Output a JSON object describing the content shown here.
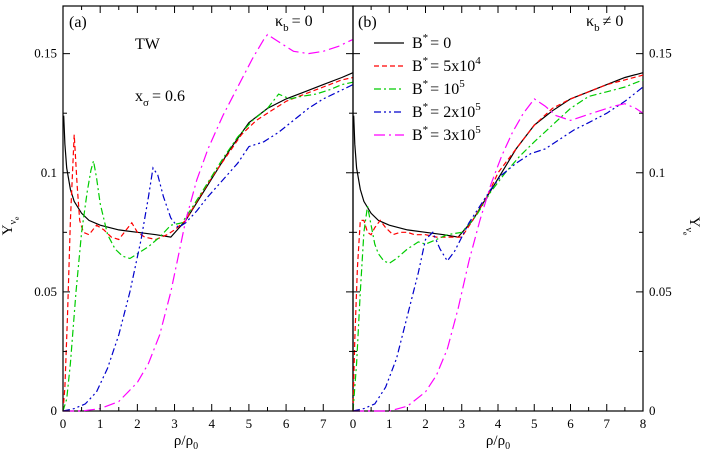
{
  "chart_data": [
    {
      "type": "line",
      "panel_label": "(a)",
      "annotations": {
        "model": "TW",
        "x_sigma_base": "x",
        "x_sigma_sub": "σ",
        "x_sigma_value": "= 0.6"
      },
      "kappa": {
        "base": "κ",
        "sub": "b",
        "relation": "= 0"
      },
      "xlabel": {
        "base": "ρ/ρ",
        "sub": "0"
      },
      "ylabel": {
        "base": "Y",
        "sub": "ν",
        "subsub": "e"
      },
      "xlim": [
        0,
        7.8
      ],
      "ylim": [
        0,
        0.17
      ],
      "xticks": [
        0,
        1,
        2,
        3,
        4,
        5,
        6,
        7
      ],
      "xtick_labels": [
        "0",
        "1",
        "2",
        "3",
        "4",
        "5",
        "6",
        "7"
      ],
      "yticks": [
        0,
        0.05,
        0.1,
        0.15
      ],
      "ytick_labels": [
        "0",
        "0.05",
        "0.1",
        "0.15"
      ],
      "ytick_side": "left",
      "series": [
        {
          "name": "B* = 0",
          "color": "#000000",
          "dash": "",
          "x": [
            0.02,
            0.05,
            0.1,
            0.2,
            0.3,
            0.5,
            0.7,
            1.0,
            1.5,
            2.0,
            2.5,
            2.9,
            3.3,
            3.7,
            4.1,
            4.5,
            5.0,
            5.5,
            6.0,
            6.5,
            7.0,
            7.5,
            7.8
          ],
          "y": [
            0.124,
            0.112,
            0.102,
            0.093,
            0.088,
            0.083,
            0.08,
            0.078,
            0.076,
            0.075,
            0.074,
            0.073,
            0.08,
            0.09,
            0.1,
            0.11,
            0.121,
            0.127,
            0.131,
            0.134,
            0.137,
            0.14,
            0.142
          ]
        },
        {
          "name": "B* = 5x10^4",
          "color": "#ff0000",
          "dash": "5,3",
          "x": [
            0.0,
            0.05,
            0.12,
            0.2,
            0.3,
            0.38,
            0.45,
            0.55,
            0.7,
            0.9,
            1.1,
            1.3,
            1.5,
            1.7,
            1.85,
            2.0,
            2.2,
            2.5,
            2.8,
            3.0,
            3.3,
            3.6,
            4.0,
            4.4,
            4.8,
            5.2,
            5.6,
            6.0,
            6.5,
            7.0,
            7.5,
            7.8
          ],
          "y": [
            0.0,
            0.01,
            0.04,
            0.08,
            0.116,
            0.095,
            0.08,
            0.075,
            0.074,
            0.078,
            0.076,
            0.073,
            0.072,
            0.076,
            0.079,
            0.075,
            0.073,
            0.072,
            0.074,
            0.076,
            0.08,
            0.088,
            0.098,
            0.107,
            0.116,
            0.122,
            0.126,
            0.13,
            0.133,
            0.136,
            0.139,
            0.14
          ]
        },
        {
          "name": "B* = 10^5",
          "color": "#00cc00",
          "dash": "7,3,2,3",
          "x": [
            0.0,
            0.1,
            0.2,
            0.35,
            0.5,
            0.65,
            0.75,
            0.82,
            0.9,
            1.0,
            1.2,
            1.4,
            1.6,
            1.8,
            2.0,
            2.3,
            2.6,
            2.9,
            3.2,
            3.5,
            3.9,
            4.3,
            4.7,
            5.1,
            5.5,
            5.8,
            6.1,
            6.4,
            6.8,
            7.2,
            7.5,
            7.8
          ],
          "y": [
            0.0,
            0.005,
            0.02,
            0.05,
            0.075,
            0.092,
            0.101,
            0.105,
            0.098,
            0.087,
            0.074,
            0.068,
            0.065,
            0.064,
            0.066,
            0.069,
            0.073,
            0.078,
            0.079,
            0.086,
            0.096,
            0.106,
            0.115,
            0.122,
            0.127,
            0.133,
            0.131,
            0.132,
            0.133,
            0.135,
            0.137,
            0.138
          ]
        },
        {
          "name": "B* = 2x10^5",
          "color": "#0000cc",
          "dash": "7,3,2,3,2,3",
          "x": [
            0.0,
            0.3,
            0.6,
            0.9,
            1.2,
            1.5,
            1.8,
            2.1,
            2.3,
            2.42,
            2.55,
            2.7,
            2.9,
            3.1,
            3.3,
            3.6,
            3.9,
            4.3,
            4.7,
            5.0,
            5.4,
            5.8,
            6.2,
            6.6,
            7.0,
            7.4,
            7.8
          ],
          "y": [
            0.0,
            0.001,
            0.003,
            0.008,
            0.018,
            0.032,
            0.05,
            0.072,
            0.09,
            0.102,
            0.099,
            0.09,
            0.081,
            0.077,
            0.079,
            0.084,
            0.09,
            0.097,
            0.104,
            0.111,
            0.113,
            0.117,
            0.122,
            0.127,
            0.131,
            0.134,
            0.137
          ]
        },
        {
          "name": "B* = 3x10^5",
          "color": "#ff00ff",
          "dash": "11,4,2,4",
          "x": [
            0.0,
            0.5,
            1.0,
            1.5,
            2.0,
            2.3,
            2.6,
            2.9,
            3.1,
            3.3,
            3.6,
            3.9,
            4.3,
            4.7,
            5.1,
            5.4,
            5.5,
            5.8,
            6.2,
            6.6,
            7.0,
            7.4,
            7.8
          ],
          "y": [
            0.0,
            0.0,
            0.001,
            0.004,
            0.012,
            0.02,
            0.032,
            0.05,
            0.065,
            0.08,
            0.097,
            0.11,
            0.124,
            0.136,
            0.148,
            0.156,
            0.158,
            0.155,
            0.151,
            0.15,
            0.151,
            0.153,
            0.156
          ]
        }
      ]
    },
    {
      "type": "line",
      "panel_label": "(b)",
      "kappa": {
        "base": "κ",
        "sub": "b",
        "relation": "≠ 0"
      },
      "xlabel": {
        "base": "ρ/ρ",
        "sub": "0"
      },
      "ylabel": {
        "base": "Y",
        "sub": "ν",
        "subsub": "e"
      },
      "xlim": [
        0,
        8
      ],
      "ylim": [
        0,
        0.17
      ],
      "xticks": [
        0,
        1,
        2,
        3,
        4,
        5,
        6,
        7,
        8
      ],
      "xtick_labels": [
        "0",
        "1",
        "2",
        "3",
        "4",
        "5",
        "6",
        "7",
        "8"
      ],
      "yticks": [
        0,
        0.05,
        0.1,
        0.15
      ],
      "ytick_labels": [
        "0",
        "0.05",
        "0.1",
        "0.15"
      ],
      "ytick_side": "right",
      "legend": {
        "position": "top-left",
        "entries": [
          {
            "base": "B",
            "sup": "*",
            "rest": "= 0"
          },
          {
            "base": "B",
            "sup": "*",
            "rest": "= 5x10",
            "exp": "4"
          },
          {
            "base": "B",
            "sup": "*",
            "rest": "= 10",
            "exp": "5"
          },
          {
            "base": "B",
            "sup": "*",
            "rest": "= 2x10",
            "exp": "5"
          },
          {
            "base": "B",
            "sup": "*",
            "rest": "= 3x10",
            "exp": "5"
          }
        ]
      },
      "series": [
        {
          "name": "B* = 0",
          "color": "#000000",
          "dash": "",
          "x": [
            0.02,
            0.05,
            0.1,
            0.2,
            0.3,
            0.5,
            0.7,
            1.0,
            1.5,
            2.0,
            2.5,
            2.9,
            3.3,
            3.7,
            4.1,
            4.5,
            5.0,
            5.5,
            6.0,
            6.5,
            7.0,
            7.5,
            8.0
          ],
          "y": [
            0.124,
            0.112,
            0.102,
            0.093,
            0.088,
            0.083,
            0.08,
            0.078,
            0.076,
            0.075,
            0.074,
            0.073,
            0.08,
            0.09,
            0.1,
            0.11,
            0.12,
            0.126,
            0.131,
            0.134,
            0.137,
            0.14,
            0.142
          ]
        },
        {
          "name": "B* = 5x10^4",
          "color": "#ff0000",
          "dash": "5,3",
          "x": [
            0.0,
            0.05,
            0.12,
            0.2,
            0.3,
            0.4,
            0.5,
            0.6,
            0.75,
            0.9,
            1.1,
            1.3,
            1.5,
            1.7,
            2.0,
            2.3,
            2.6,
            3.0,
            3.3,
            3.7,
            4.0,
            4.5,
            5.0,
            5.5,
            6.0,
            6.5,
            7.0,
            7.5,
            8.0
          ],
          "y": [
            0.0,
            0.03,
            0.06,
            0.08,
            0.08,
            0.075,
            0.074,
            0.077,
            0.08,
            0.077,
            0.074,
            0.075,
            0.075,
            0.074,
            0.074,
            0.073,
            0.073,
            0.073,
            0.08,
            0.09,
            0.1,
            0.11,
            0.12,
            0.127,
            0.131,
            0.134,
            0.137,
            0.139,
            0.141
          ]
        },
        {
          "name": "B* = 10^5",
          "color": "#00cc00",
          "dash": "7,3,2,3",
          "x": [
            0.0,
            0.1,
            0.2,
            0.3,
            0.4,
            0.5,
            0.6,
            0.7,
            0.85,
            1.0,
            1.2,
            1.5,
            1.8,
            2.0,
            2.3,
            2.6,
            3.0,
            3.4,
            3.8,
            4.2,
            4.6,
            5.0,
            5.5,
            6.0,
            6.5,
            7.0,
            7.5,
            8.0
          ],
          "y": [
            0.0,
            0.02,
            0.05,
            0.075,
            0.086,
            0.078,
            0.07,
            0.066,
            0.063,
            0.062,
            0.064,
            0.068,
            0.071,
            0.07,
            0.072,
            0.074,
            0.075,
            0.082,
            0.092,
            0.1,
            0.107,
            0.113,
            0.12,
            0.127,
            0.132,
            0.134,
            0.136,
            0.139
          ]
        },
        {
          "name": "B* = 2x10^5",
          "color": "#0000cc",
          "dash": "7,3,2,3,2,3",
          "x": [
            0.0,
            0.3,
            0.6,
            0.9,
            1.2,
            1.5,
            1.8,
            2.0,
            2.2,
            2.4,
            2.6,
            2.8,
            3.0,
            3.2,
            3.5,
            3.8,
            4.1,
            4.5,
            4.9,
            5.3,
            5.7,
            6.1,
            6.5,
            7.0,
            7.5,
            8.0
          ],
          "y": [
            0.0,
            0.001,
            0.003,
            0.01,
            0.022,
            0.04,
            0.058,
            0.072,
            0.075,
            0.068,
            0.063,
            0.067,
            0.073,
            0.079,
            0.086,
            0.093,
            0.099,
            0.104,
            0.108,
            0.11,
            0.114,
            0.118,
            0.121,
            0.125,
            0.13,
            0.136
          ]
        },
        {
          "name": "B* = 3x10^5",
          "color": "#ff00ff",
          "dash": "11,4,2,4",
          "x": [
            0.0,
            0.5,
            1.0,
            1.5,
            2.0,
            2.3,
            2.6,
            2.9,
            3.2,
            3.5,
            3.8,
            4.1,
            4.4,
            4.7,
            5.0,
            5.3,
            5.6,
            6.0,
            6.4,
            6.8,
            7.2,
            7.5,
            7.8,
            8.0
          ],
          "y": [
            0.0,
            0.0,
            0.0,
            0.002,
            0.008,
            0.015,
            0.026,
            0.043,
            0.063,
            0.08,
            0.095,
            0.107,
            0.117,
            0.125,
            0.131,
            0.128,
            0.124,
            0.122,
            0.124,
            0.126,
            0.128,
            0.129,
            0.127,
            0.125
          ]
        }
      ]
    }
  ]
}
